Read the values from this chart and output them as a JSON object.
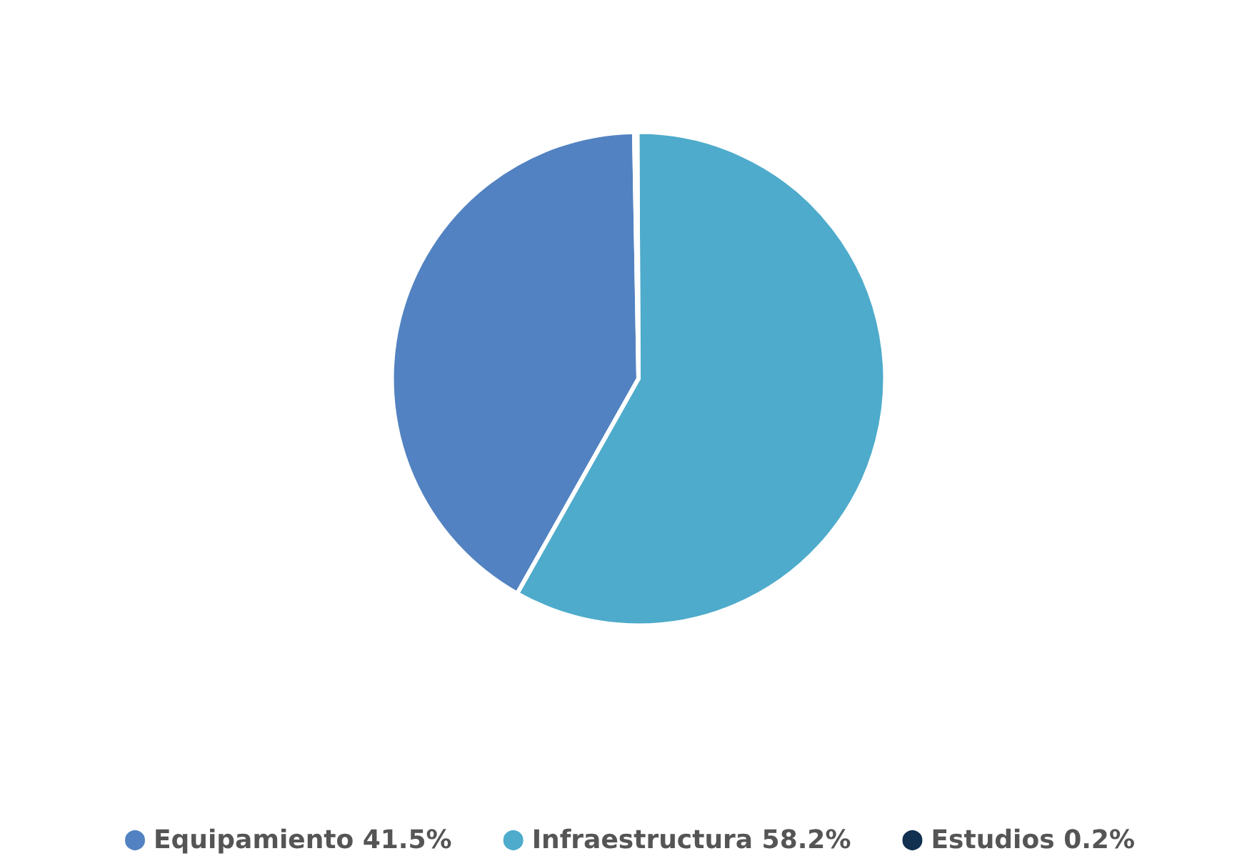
{
  "chart_data": {
    "type": "pie",
    "categories": [
      "Equipamiento",
      "Infraestructura",
      "Estudios"
    ],
    "values": [
      41.5,
      58.2,
      0.2
    ],
    "value_labels": [
      "41.5%",
      "58.2%",
      "0.2%"
    ],
    "colors": [
      "#5282c1",
      "#4eabcb",
      "#12304f"
    ],
    "legend": "bottom"
  }
}
